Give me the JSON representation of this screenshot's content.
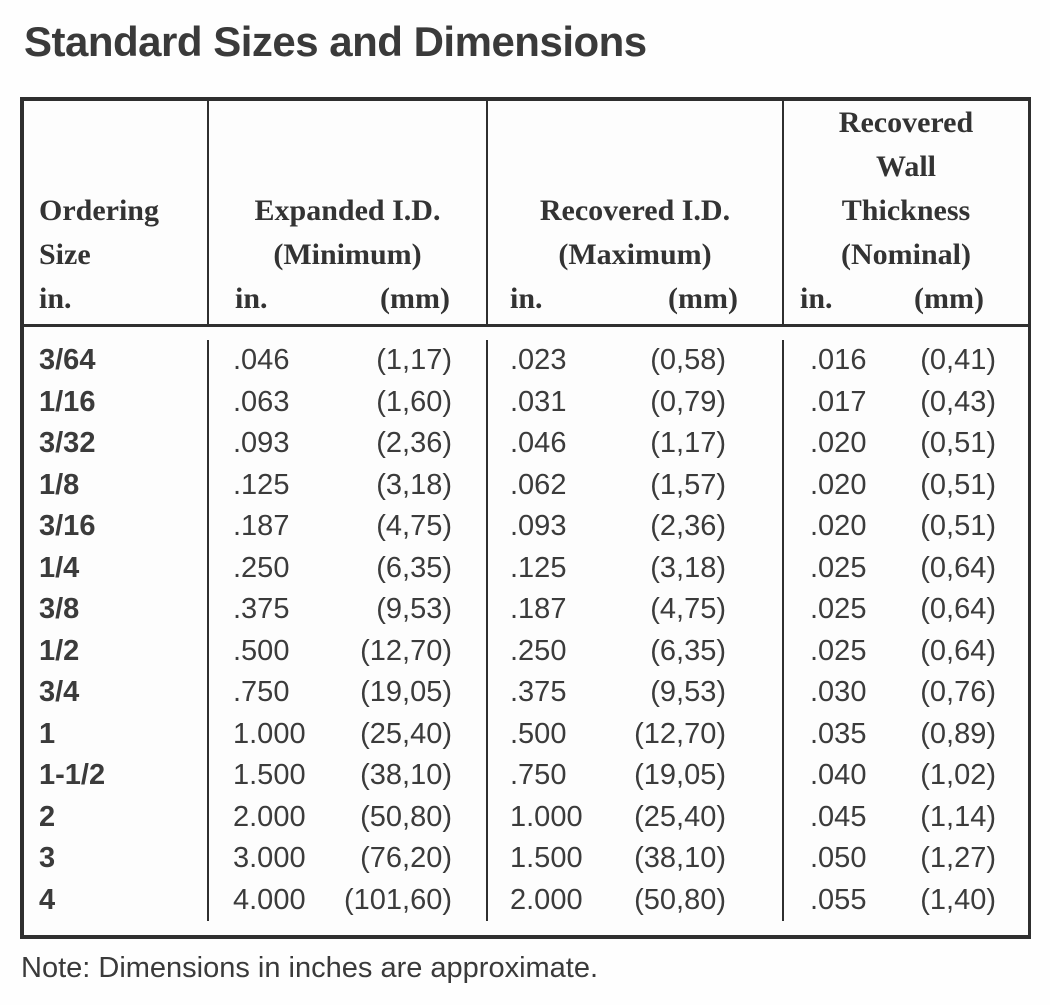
{
  "page": {
    "title": "Standard Sizes and Dimensions",
    "note": "Note: Dimensions in inches are approximate."
  },
  "table": {
    "header": {
      "col1": {
        "lines": [
          "Ordering",
          "Size",
          "in."
        ]
      },
      "col2": {
        "title": "Expanded I.D.",
        "subtitle": "(Minimum)",
        "in": "in.",
        "mm": "(mm)"
      },
      "col3": {
        "title": "Recovered I.D.",
        "subtitle": "(Maximum)",
        "in": "in.",
        "mm": "(mm)"
      },
      "col4": {
        "lines": [
          "Recovered",
          "Wall",
          "Thickness",
          "(Nominal)"
        ],
        "in": "in.",
        "mm": "(mm)"
      }
    },
    "rows": [
      {
        "size": "3/64",
        "expanded_in": ".046",
        "expanded_mm": "(1,17)",
        "recovered_in": ".023",
        "recovered_mm": "(0,58)",
        "wall_in": ".016",
        "wall_mm": "(0,41)"
      },
      {
        "size": "1/16",
        "expanded_in": ".063",
        "expanded_mm": "(1,60)",
        "recovered_in": ".031",
        "recovered_mm": "(0,79)",
        "wall_in": ".017",
        "wall_mm": "(0,43)"
      },
      {
        "size": "3/32",
        "expanded_in": ".093",
        "expanded_mm": "(2,36)",
        "recovered_in": ".046",
        "recovered_mm": "(1,17)",
        "wall_in": ".020",
        "wall_mm": "(0,51)"
      },
      {
        "size": "1/8",
        "expanded_in": ".125",
        "expanded_mm": "(3,18)",
        "recovered_in": ".062",
        "recovered_mm": "(1,57)",
        "wall_in": ".020",
        "wall_mm": "(0,51)"
      },
      {
        "size": "3/16",
        "expanded_in": ".187",
        "expanded_mm": "(4,75)",
        "recovered_in": ".093",
        "recovered_mm": "(2,36)",
        "wall_in": ".020",
        "wall_mm": "(0,51)"
      },
      {
        "size": "1/4",
        "expanded_in": ".250",
        "expanded_mm": "(6,35)",
        "recovered_in": ".125",
        "recovered_mm": "(3,18)",
        "wall_in": ".025",
        "wall_mm": "(0,64)"
      },
      {
        "size": "3/8",
        "expanded_in": ".375",
        "expanded_mm": "(9,53)",
        "recovered_in": ".187",
        "recovered_mm": "(4,75)",
        "wall_in": ".025",
        "wall_mm": "(0,64)"
      },
      {
        "size": "1/2",
        "expanded_in": ".500",
        "expanded_mm": "(12,70)",
        "recovered_in": ".250",
        "recovered_mm": "(6,35)",
        "wall_in": ".025",
        "wall_mm": "(0,64)"
      },
      {
        "size": "3/4",
        "expanded_in": ".750",
        "expanded_mm": "(19,05)",
        "recovered_in": ".375",
        "recovered_mm": "(9,53)",
        "wall_in": ".030",
        "wall_mm": "(0,76)"
      },
      {
        "size": "1",
        "expanded_in": "1.000",
        "expanded_mm": "(25,40)",
        "recovered_in": ".500",
        "recovered_mm": "(12,70)",
        "wall_in": ".035",
        "wall_mm": "(0,89)"
      },
      {
        "size": "1-1/2",
        "expanded_in": "1.500",
        "expanded_mm": "(38,10)",
        "recovered_in": ".750",
        "recovered_mm": "(19,05)",
        "wall_in": ".040",
        "wall_mm": "(1,02)"
      },
      {
        "size": "2",
        "expanded_in": "2.000",
        "expanded_mm": "(50,80)",
        "recovered_in": "1.000",
        "recovered_mm": "(25,40)",
        "wall_in": ".045",
        "wall_mm": "(1,14)"
      },
      {
        "size": "3",
        "expanded_in": "3.000",
        "expanded_mm": "(76,20)",
        "recovered_in": "1.500",
        "recovered_mm": "(38,10)",
        "wall_in": ".050",
        "wall_mm": "(1,27)"
      },
      {
        "size": "4",
        "expanded_in": "4.000",
        "expanded_mm": "(101,60)",
        "recovered_in": "2.000",
        "recovered_mm": "(50,80)",
        "wall_in": ".055",
        "wall_mm": "(1,40)"
      }
    ]
  }
}
